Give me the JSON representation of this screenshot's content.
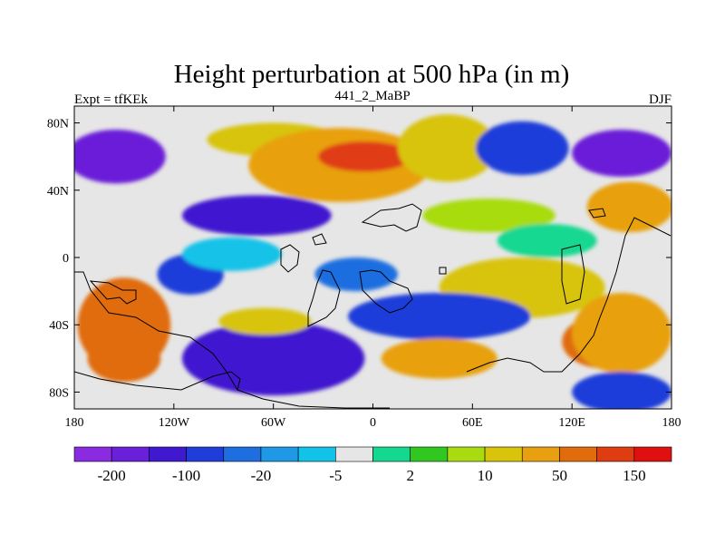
{
  "chart_data": {
    "type": "heatmap",
    "title": "Height perturbation at 500 hPa (in m)",
    "subtitle_left": "Expt = tfKEk",
    "subtitle_center": "441_2_MaBP",
    "subtitle_right": "DJF",
    "xlim": [
      -180,
      180
    ],
    "ylim": [
      -90,
      90
    ],
    "x_ticks": [
      {
        "value": -180,
        "label": "180"
      },
      {
        "value": -120,
        "label": "120W"
      },
      {
        "value": -60,
        "label": "60W"
      },
      {
        "value": 0,
        "label": "0"
      },
      {
        "value": 60,
        "label": "60E"
      },
      {
        "value": 120,
        "label": "120E"
      },
      {
        "value": 180,
        "label": "180"
      }
    ],
    "y_ticks": [
      {
        "value": 80,
        "label": "80N"
      },
      {
        "value": 40,
        "label": "40N"
      },
      {
        "value": 0,
        "label": "0"
      },
      {
        "value": -40,
        "label": "40S"
      },
      {
        "value": -80,
        "label": "80S"
      }
    ],
    "colorbar": {
      "colors": [
        "#8a2be2",
        "#6a1fd8",
        "#3f18d0",
        "#1f3dd9",
        "#1e6ee0",
        "#1f98e6",
        "#13c2e8",
        "#e6e6e6",
        "#14d890",
        "#30c820",
        "#a8dc10",
        "#d8c40a",
        "#e8a010",
        "#e06c0c",
        "#e03c12",
        "#e01010"
      ],
      "tick_labels": [
        {
          "index": 1,
          "label": "-200"
        },
        {
          "index": 3,
          "label": "-100"
        },
        {
          "index": 5,
          "label": "-20"
        },
        {
          "index": 7,
          "label": "-5"
        },
        {
          "index": 9,
          "label": "2"
        },
        {
          "index": 11,
          "label": "10"
        },
        {
          "index": 13,
          "label": "50"
        },
        {
          "index": 15,
          "label": "150"
        }
      ]
    },
    "fields": [
      {
        "lon": -155,
        "lat": 60,
        "value": -200,
        "rx": 30,
        "ry": 16
      },
      {
        "lon": -70,
        "lat": 25,
        "value": -150,
        "rx": 45,
        "ry": 12
      },
      {
        "lon": -150,
        "lat": -40,
        "value": 100,
        "rx": 28,
        "ry": 28
      },
      {
        "lon": -150,
        "lat": -60,
        "value": 140,
        "rx": 22,
        "ry": 14
      },
      {
        "lon": -65,
        "lat": -65,
        "value": -200,
        "rx": 40,
        "ry": 14
      },
      {
        "lon": -60,
        "lat": -60,
        "value": -120,
        "rx": 55,
        "ry": 22
      },
      {
        "lon": -110,
        "lat": -10,
        "value": -60,
        "rx": 20,
        "ry": 12
      },
      {
        "lon": -60,
        "lat": 70,
        "value": 30,
        "rx": 40,
        "ry": 10
      },
      {
        "lon": -20,
        "lat": 55,
        "value": 80,
        "rx": 55,
        "ry": 22
      },
      {
        "lon": -5,
        "lat": 60,
        "value": 150,
        "rx": 28,
        "ry": 9
      },
      {
        "lon": 45,
        "lat": 65,
        "value": 40,
        "rx": 30,
        "ry": 20
      },
      {
        "lon": 90,
        "lat": 65,
        "value": -60,
        "rx": 28,
        "ry": 16
      },
      {
        "lon": 150,
        "lat": 62,
        "value": -200,
        "rx": 30,
        "ry": 14
      },
      {
        "lon": 155,
        "lat": 30,
        "value": 60,
        "rx": 26,
        "ry": 15
      },
      {
        "lon": 70,
        "lat": 25,
        "value": 12,
        "rx": 40,
        "ry": 10
      },
      {
        "lon": 105,
        "lat": 10,
        "value": 4,
        "rx": 30,
        "ry": 10
      },
      {
        "lon": -85,
        "lat": 2,
        "value": -8,
        "rx": 30,
        "ry": 10
      },
      {
        "lon": 90,
        "lat": -18,
        "value": 20,
        "rx": 50,
        "ry": 18
      },
      {
        "lon": 140,
        "lat": -50,
        "value": 120,
        "rx": 26,
        "ry": 16
      },
      {
        "lon": 150,
        "lat": -45,
        "value": 60,
        "rx": 30,
        "ry": 24
      },
      {
        "lon": 40,
        "lat": -35,
        "value": -60,
        "rx": 55,
        "ry": 14
      },
      {
        "lon": 40,
        "lat": -60,
        "value": 60,
        "rx": 35,
        "ry": 12
      },
      {
        "lon": 150,
        "lat": -80,
        "value": -80,
        "rx": 30,
        "ry": 12
      },
      {
        "lon": -65,
        "lat": -38,
        "value": 25,
        "rx": 28,
        "ry": 8
      },
      {
        "lon": -10,
        "lat": -10,
        "value": -40,
        "rx": 25,
        "ry": 10
      }
    ]
  }
}
